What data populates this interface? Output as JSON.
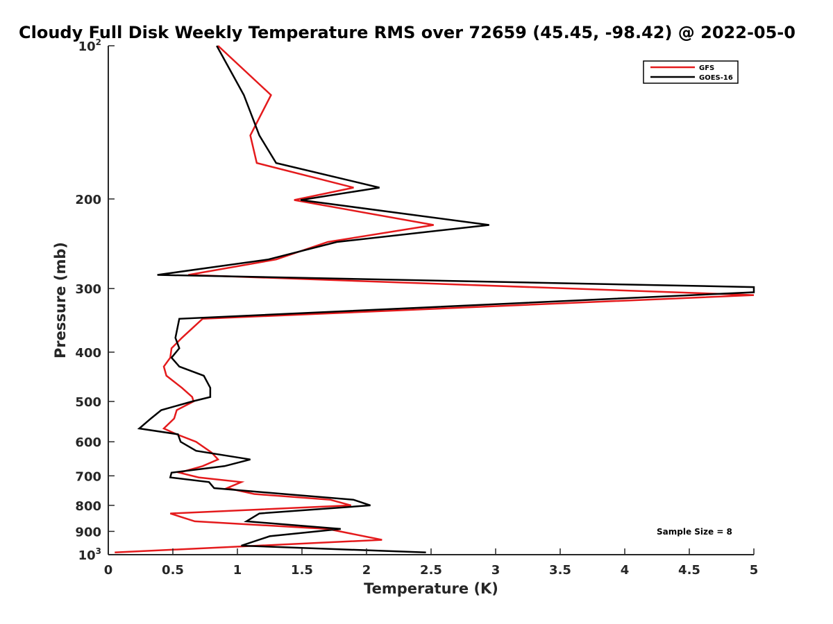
{
  "chart_data": {
    "type": "line",
    "title": "Cloudy Full Disk Weekly Temperature RMS over 72659 (45.45, -98.42) @ 2022-05-0",
    "xlabel": "Temperature (K)",
    "ylabel": "Pressure (mb)",
    "xlim": [
      0,
      5
    ],
    "ylim": [
      100,
      1000
    ],
    "y_scale": "log",
    "y_reversed": true,
    "grid": false,
    "legend_position": "top-right",
    "annotation": "Sample Size = 8",
    "x_ticks": [
      {
        "value": 0,
        "label": "0"
      },
      {
        "value": 0.5,
        "label": "0.5"
      },
      {
        "value": 1,
        "label": "1"
      },
      {
        "value": 1.5,
        "label": "1.5"
      },
      {
        "value": 2,
        "label": "2"
      },
      {
        "value": 2.5,
        "label": "2.5"
      },
      {
        "value": 3,
        "label": "3"
      },
      {
        "value": 3.5,
        "label": "3.5"
      },
      {
        "value": 4,
        "label": "4"
      },
      {
        "value": 4.5,
        "label": "4.5"
      },
      {
        "value": 5,
        "label": "5"
      }
    ],
    "y_ticks": [
      {
        "value": 100,
        "label": "10",
        "sup": "2"
      },
      {
        "value": 200,
        "label": "200"
      },
      {
        "value": 300,
        "label": "300"
      },
      {
        "value": 400,
        "label": "400"
      },
      {
        "value": 500,
        "label": "500"
      },
      {
        "value": 600,
        "label": "600"
      },
      {
        "value": 700,
        "label": "700"
      },
      {
        "value": 800,
        "label": "800"
      },
      {
        "value": 900,
        "label": "900"
      },
      {
        "value": 1000,
        "label": "10",
        "sup": "3"
      }
    ],
    "series": [
      {
        "name": "GFS",
        "color": "#e41a1c",
        "points": [
          [
            0.85,
            100
          ],
          [
            1.26,
            125
          ],
          [
            1.1,
            150
          ],
          [
            1.15,
            170
          ],
          [
            1.9,
            190
          ],
          [
            1.44,
            201
          ],
          [
            2.52,
            225
          ],
          [
            1.7,
            243
          ],
          [
            1.3,
            263
          ],
          [
            0.62,
            282
          ],
          [
            5.0,
            309
          ],
          [
            0.73,
            344
          ],
          [
            0.57,
            375
          ],
          [
            0.49,
            393
          ],
          [
            0.48,
            410
          ],
          [
            0.43,
            427
          ],
          [
            0.45,
            445
          ],
          [
            0.57,
            470
          ],
          [
            0.65,
            490
          ],
          [
            0.66,
            500
          ],
          [
            0.53,
            520
          ],
          [
            0.51,
            540
          ],
          [
            0.43,
            565
          ],
          [
            0.53,
            580
          ],
          [
            0.68,
            600
          ],
          [
            0.8,
            630
          ],
          [
            0.85,
            650
          ],
          [
            0.73,
            670
          ],
          [
            0.55,
            690
          ],
          [
            0.7,
            705
          ],
          [
            1.03,
            720
          ],
          [
            0.92,
            740
          ],
          [
            1.13,
            760
          ],
          [
            1.72,
            780
          ],
          [
            1.88,
            800
          ],
          [
            0.48,
            830
          ],
          [
            0.67,
            860
          ],
          [
            1.7,
            890
          ],
          [
            2.12,
            935
          ],
          [
            0.05,
            990
          ]
        ]
      },
      {
        "name": "GOES-16",
        "color": "#000000",
        "points": [
          [
            0.84,
            100
          ],
          [
            1.05,
            125
          ],
          [
            1.17,
            150
          ],
          [
            1.3,
            170
          ],
          [
            2.1,
            190
          ],
          [
            1.49,
            201
          ],
          [
            2.95,
            225
          ],
          [
            1.77,
            243
          ],
          [
            1.24,
            263
          ],
          [
            0.38,
            282
          ],
          [
            5.0,
            298
          ],
          [
            5.0,
            305
          ],
          [
            0.55,
            344
          ],
          [
            0.52,
            375
          ],
          [
            0.55,
            393
          ],
          [
            0.49,
            410
          ],
          [
            0.55,
            427
          ],
          [
            0.74,
            445
          ],
          [
            0.79,
            470
          ],
          [
            0.79,
            490
          ],
          [
            0.65,
            500
          ],
          [
            0.41,
            520
          ],
          [
            0.33,
            540
          ],
          [
            0.24,
            565
          ],
          [
            0.54,
            580
          ],
          [
            0.56,
            600
          ],
          [
            0.68,
            625
          ],
          [
            1.1,
            650
          ],
          [
            0.9,
            670
          ],
          [
            0.49,
            690
          ],
          [
            0.48,
            705
          ],
          [
            0.78,
            720
          ],
          [
            0.82,
            740
          ],
          [
            1.36,
            760
          ],
          [
            1.9,
            780
          ],
          [
            2.03,
            800
          ],
          [
            1.17,
            830
          ],
          [
            1.07,
            860
          ],
          [
            1.8,
            890
          ],
          [
            1.25,
            920
          ],
          [
            1.03,
            960
          ],
          [
            2.46,
            990
          ]
        ]
      }
    ]
  }
}
